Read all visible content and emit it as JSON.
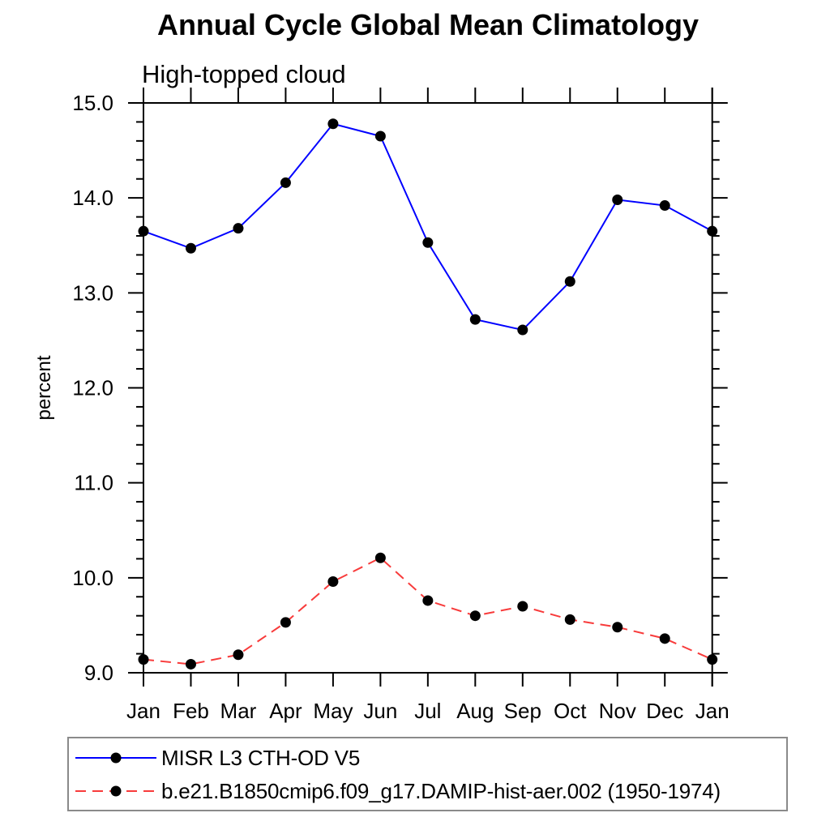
{
  "header": {
    "title": "Annual Cycle Global Mean Climatology",
    "subtitle": "High-topped cloud"
  },
  "chart_data": {
    "type": "line",
    "title": "Annual Cycle Global Mean Climatology",
    "subtitle": "High-topped cloud",
    "categories": [
      "Jan",
      "Feb",
      "Mar",
      "Apr",
      "May",
      "Jun",
      "Jul",
      "Aug",
      "Sep",
      "Oct",
      "Nov",
      "Dec",
      "Jan"
    ],
    "xlabel": "",
    "ylabel": "percent",
    "ylim": [
      9.0,
      15.0
    ],
    "y_major_step": 1.0,
    "y_minor_step": 0.2,
    "y_tick_labels": [
      "9.0",
      "10.0",
      "11.0",
      "12.0",
      "13.0",
      "14.0",
      "15.0"
    ],
    "grid": false,
    "legend_position": "bottom-left-boxed",
    "marker": {
      "shape": "filled-circle",
      "color": "#000000",
      "radius": 6.5
    },
    "series": [
      {
        "name": "MISR L3 CTH-OD V5",
        "color": "#0000ff",
        "line_style": "solid",
        "values": [
          13.65,
          13.47,
          13.68,
          14.16,
          14.78,
          14.65,
          13.53,
          12.72,
          12.61,
          13.12,
          13.98,
          13.92,
          13.65
        ]
      },
      {
        "name": "b.e21.B1850cmip6.f09_g17.DAMIP-hist-aer.002 (1950-1974)",
        "color": "#f83b3b",
        "line_style": "dashed",
        "values": [
          9.14,
          9.09,
          9.19,
          9.53,
          9.96,
          10.21,
          9.76,
          9.6,
          9.7,
          9.56,
          9.48,
          9.36,
          9.14
        ]
      }
    ]
  }
}
